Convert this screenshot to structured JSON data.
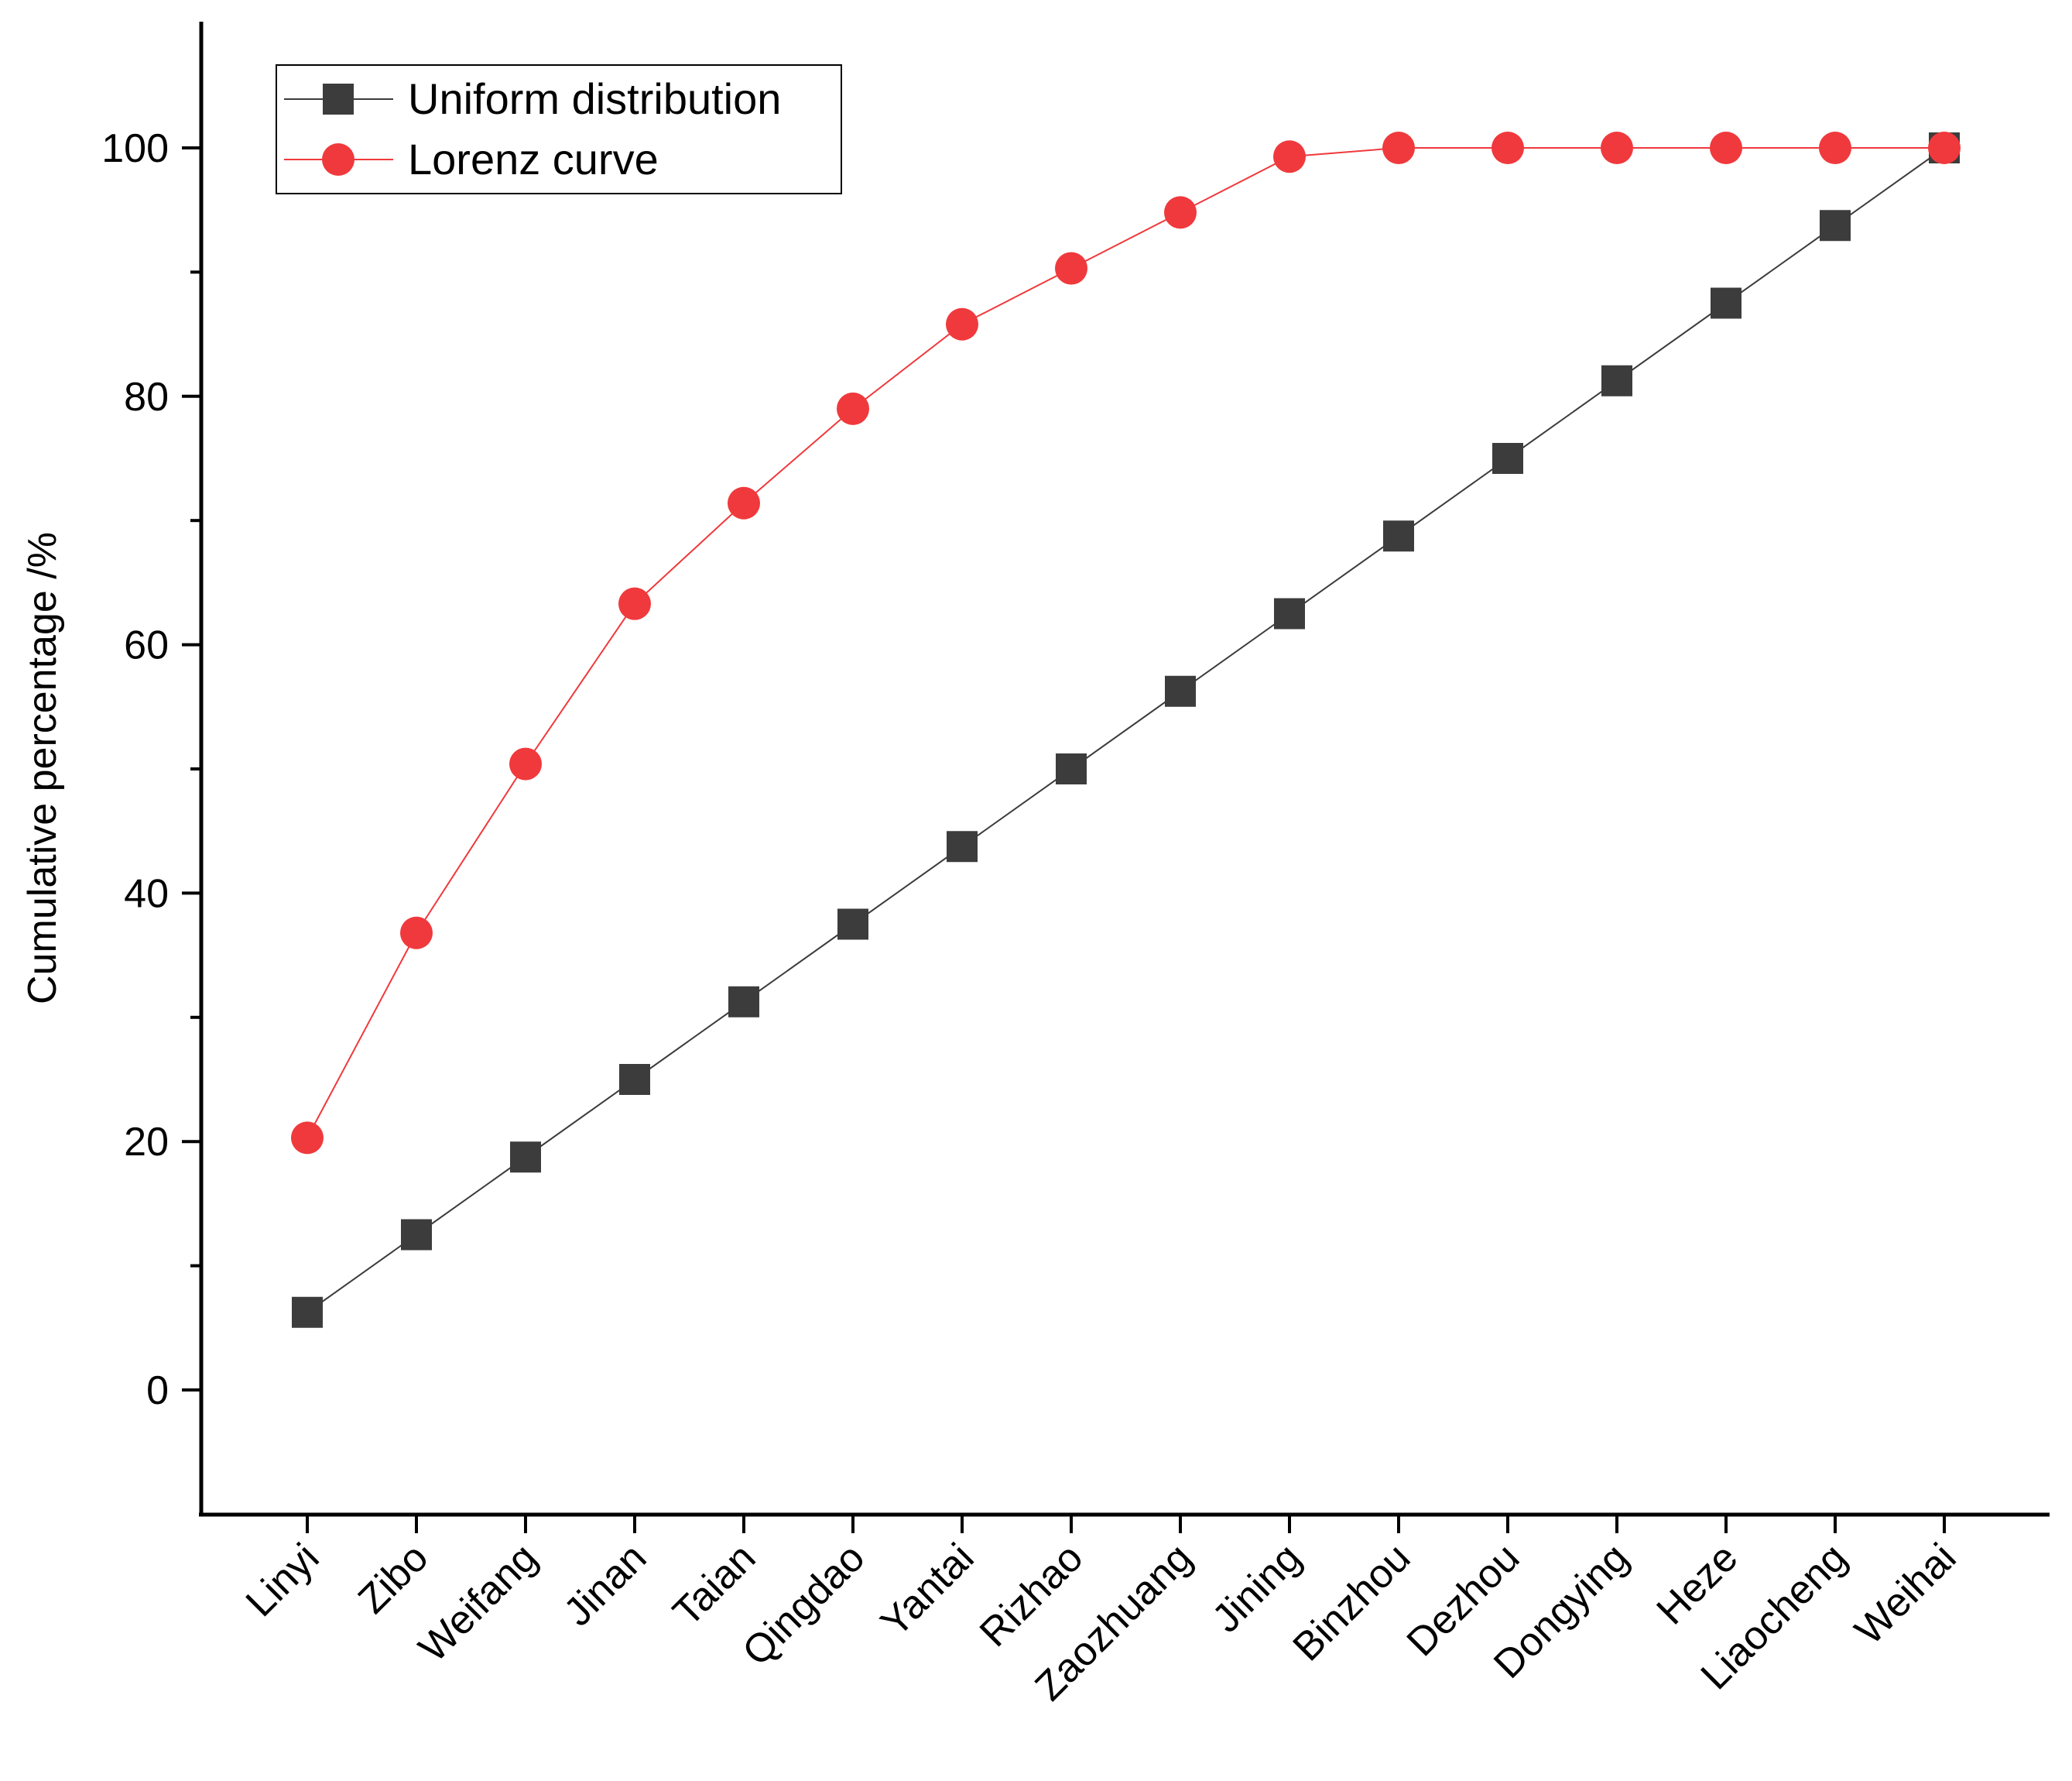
{
  "chart_data": {
    "type": "line",
    "title": "",
    "xlabel": "",
    "ylabel": "Cumulative percentage /%",
    "categories": [
      "Linyi",
      "Zibo",
      "Weifang",
      "Jinan",
      "Taian",
      "Qingdao",
      "Yantai",
      "Rizhao",
      "Zaozhuang",
      "Jining",
      "Binzhou",
      "Dezhou",
      "Dongying",
      "Heze",
      "Liaocheng",
      "Weihai"
    ],
    "ylim": [
      -10,
      110
    ],
    "yticks": [
      0,
      20,
      40,
      60,
      80,
      100
    ],
    "yminor_ticks": [
      10,
      30,
      50,
      70,
      90
    ],
    "grid": false,
    "legend_position": "top-left",
    "series": [
      {
        "name": "Uniform distribution",
        "color": "#3c3c3c",
        "marker": "square",
        "values": [
          6.25,
          12.5,
          18.75,
          25.0,
          31.25,
          37.5,
          43.75,
          50.0,
          56.25,
          62.5,
          68.75,
          75.0,
          81.25,
          87.5,
          93.75,
          100.0
        ]
      },
      {
        "name": "Lorenz curve",
        "color": "#f0393c",
        "marker": "circle",
        "values": [
          20.3,
          36.8,
          50.4,
          63.3,
          71.4,
          79.0,
          85.8,
          90.3,
          94.8,
          99.3,
          100.0,
          100.0,
          100.0,
          100.0,
          100.0,
          100.0
        ]
      }
    ]
  }
}
